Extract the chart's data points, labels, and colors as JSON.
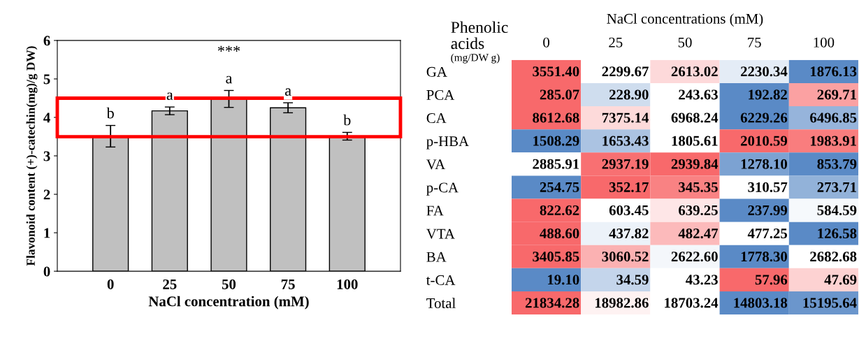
{
  "chart_data": [
    {
      "type": "bar",
      "categories": [
        "0",
        "25",
        "50",
        "75",
        "100"
      ],
      "values": [
        3.51,
        4.17,
        4.48,
        4.25,
        3.51
      ],
      "errors": [
        0.28,
        0.1,
        0.22,
        0.13,
        0.1
      ],
      "color": "#c0c0c0",
      "xlabel": "NaCl concentration (mM)",
      "ylabel": "Flavonoid content (+)-catechin(mg)/g DW)",
      "ylim": [
        0,
        6
      ],
      "yticks": [
        0,
        1,
        2,
        3,
        4,
        5,
        6
      ],
      "grid": false,
      "annotations": [
        "b",
        "a",
        "a",
        "a",
        "b",
        "***"
      ]
    },
    {
      "type": "heatmap",
      "xlabel": "NaCl concentrations (mM)",
      "ylabel": "Phenolic\nacids",
      "annotations": [
        "(mg/DW g)"
      ],
      "categories": [
        "0",
        "25",
        "50",
        "75",
        "100"
      ],
      "y_categories": [
        "GA",
        "PCA",
        "CA",
        "p-HBA",
        "VA",
        "p-CA",
        "FA",
        "VTA",
        "BA",
        "t-CA",
        "Total"
      ],
      "cells": [
        [
          3551.4,
          2299.67,
          2613.02,
          2230.34,
          1876.13
        ],
        [
          285.07,
          228.9,
          243.63,
          192.82,
          269.71
        ],
        [
          8612.68,
          7375.14,
          6968.24,
          6229.26,
          6496.85
        ],
        [
          1508.29,
          1653.43,
          1805.61,
          2010.59,
          1983.91
        ],
        [
          2885.91,
          2937.19,
          2939.84,
          1278.1,
          853.79
        ],
        [
          254.75,
          352.17,
          345.35,
          310.57,
          273.71
        ],
        [
          822.62,
          603.45,
          639.25,
          237.99,
          584.59
        ],
        [
          488.6,
          437.82,
          482.47,
          477.25,
          126.58
        ],
        [
          3405.85,
          3060.52,
          2622.6,
          1778.3,
          2682.68
        ],
        [
          19.1,
          34.59,
          43.23,
          57.96,
          47.69
        ],
        [
          21834.28,
          18982.86,
          18703.24,
          14803.18,
          15195.64
        ]
      ],
      "cell_labels": [
        [
          "3551.40",
          "2299.67",
          "2613.02",
          "2230.34",
          "1876.13"
        ],
        [
          "285.07",
          "228.90",
          "243.63",
          "192.82",
          "269.71"
        ],
        [
          "8612.68",
          "7375.14",
          "6968.24",
          "6229.26",
          "6496.85"
        ],
        [
          "1508.29",
          "1653.43",
          "1805.61",
          "2010.59",
          "1983.91"
        ],
        [
          "2885.91",
          "2937.19",
          "2939.84",
          "1278.10",
          "853.79"
        ],
        [
          "254.75",
          "352.17",
          "345.35",
          "310.57",
          "273.71"
        ],
        [
          "822.62",
          "603.45",
          "639.25",
          "237.99",
          "584.59"
        ],
        [
          "488.60",
          "437.82",
          "482.47",
          "477.25",
          "126.58"
        ],
        [
          "3405.85",
          "3060.52",
          "2622.60",
          "1778.30",
          "2682.68"
        ],
        [
          "19.10",
          "34.59",
          "43.23",
          "57.96",
          "47.69"
        ],
        [
          "21834.28",
          "18982.86",
          "18703.24",
          "14803.18",
          "15195.64"
        ]
      ]
    }
  ]
}
